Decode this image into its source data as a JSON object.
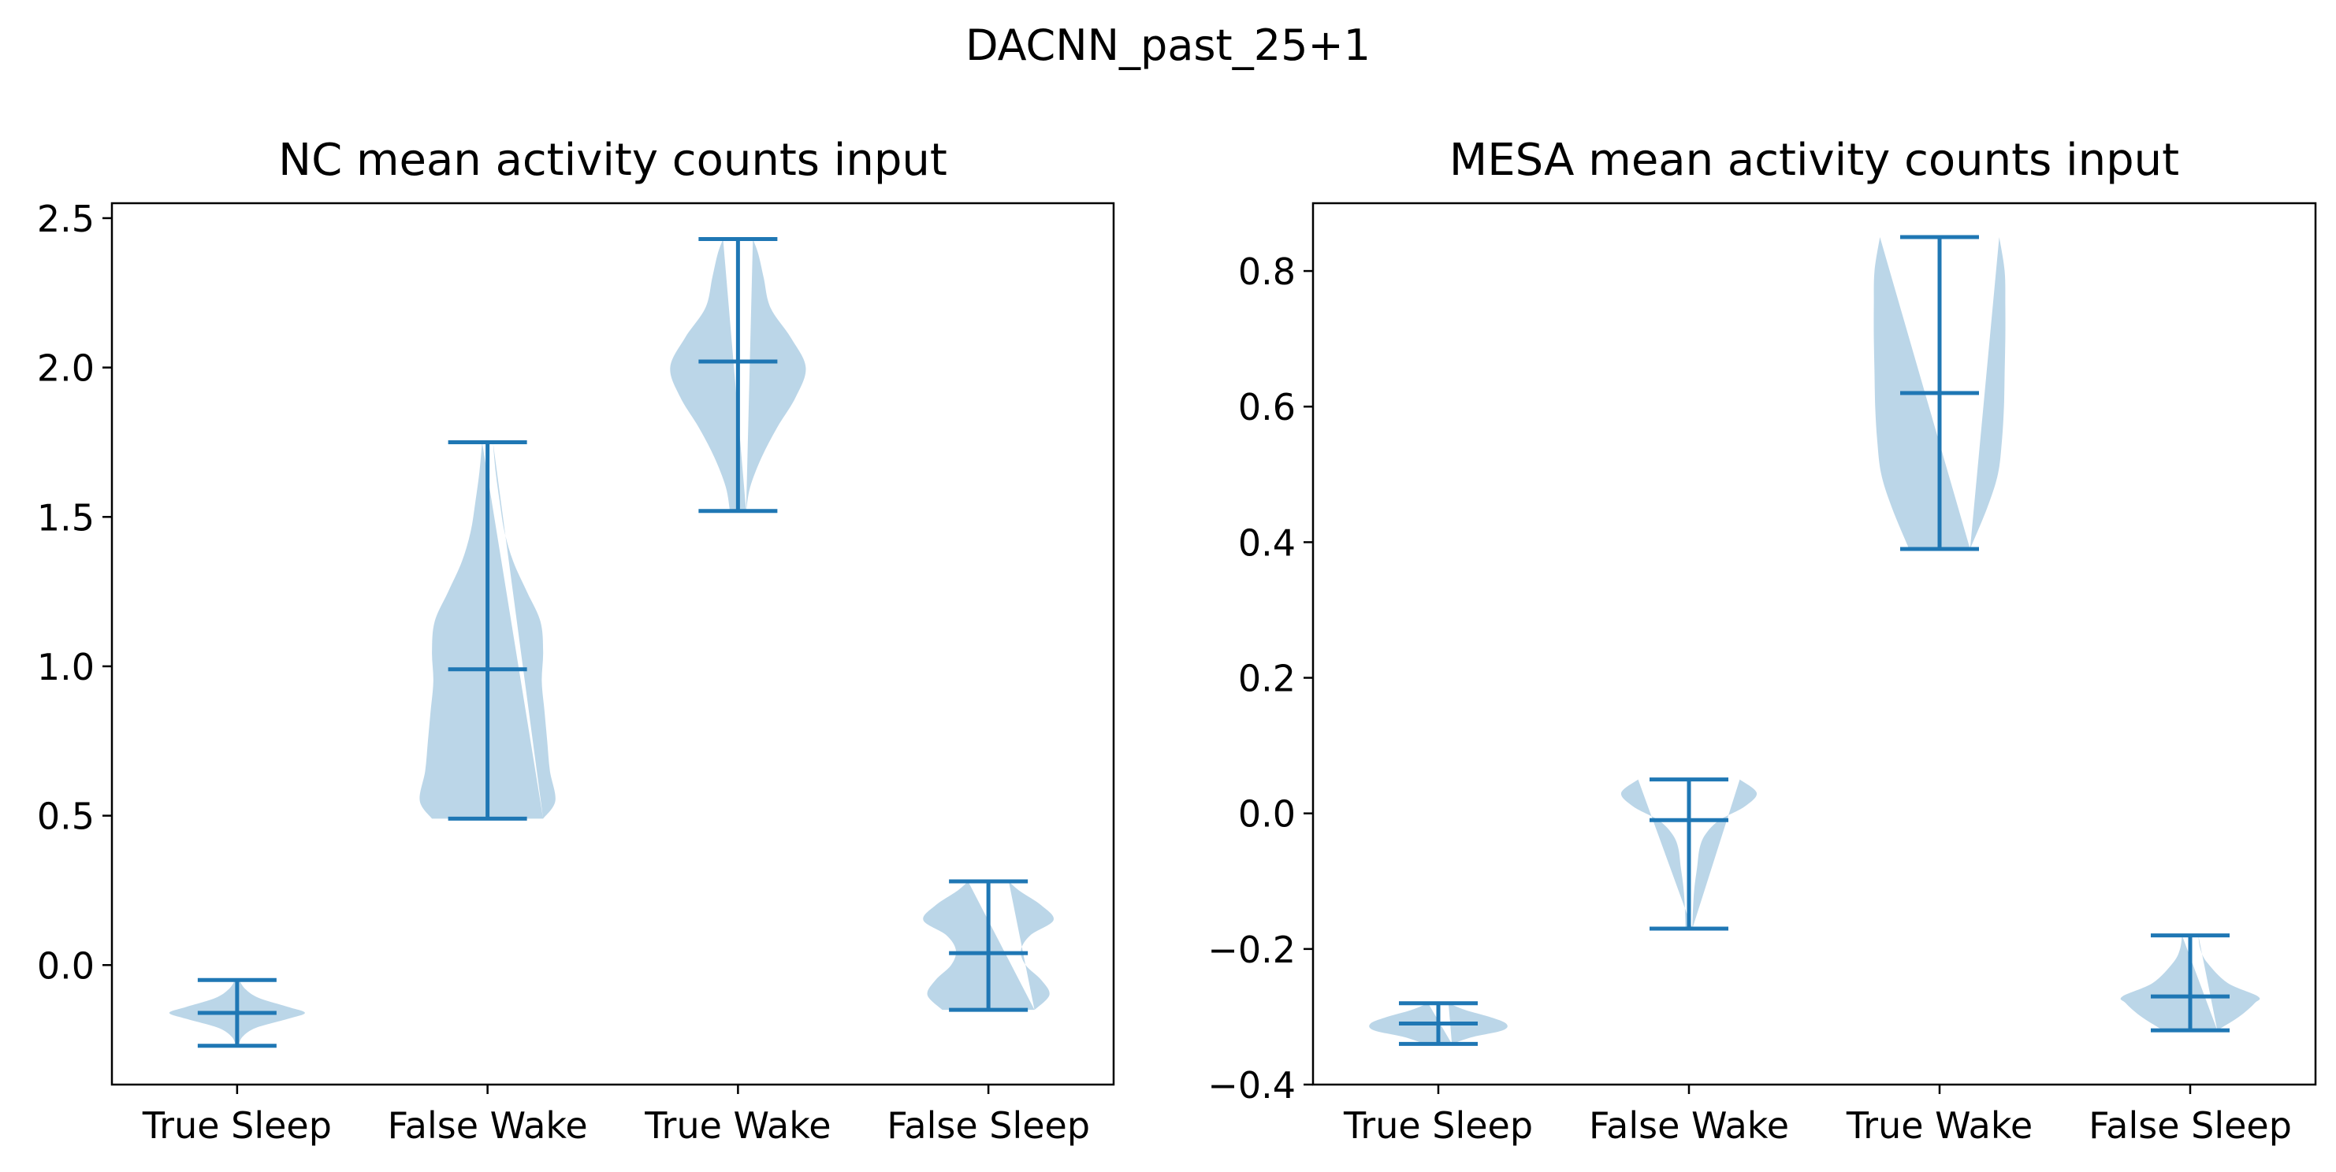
{
  "figure_title": "DACNN_past_25+1",
  "colors": {
    "body": "#1f77b4",
    "line": "#1f77b4"
  },
  "chart_data": [
    {
      "type": "violin",
      "title": "NC mean activity counts input",
      "categories": [
        "True Sleep",
        "False Wake",
        "True Wake",
        "False Sleep"
      ],
      "ylim": [
        -0.4,
        2.55
      ],
      "yticks": [
        0.0,
        0.5,
        1.0,
        1.5,
        2.0,
        2.5
      ],
      "ytick_labels": [
        "0.0",
        "0.5",
        "1.0",
        "1.5",
        "2.0",
        "2.5"
      ],
      "violins": [
        {
          "min": -0.27,
          "max": -0.05,
          "median": -0.16,
          "profile": [
            [
              -0.27,
              0.02
            ],
            [
              -0.24,
              0.08
            ],
            [
              -0.21,
              0.28
            ],
            [
              -0.18,
              0.75
            ],
            [
              -0.16,
              1.0
            ],
            [
              -0.14,
              0.75
            ],
            [
              -0.11,
              0.32
            ],
            [
              -0.08,
              0.12
            ],
            [
              -0.05,
              0.03
            ]
          ]
        },
        {
          "min": 0.49,
          "max": 1.75,
          "median": 0.99,
          "profile": [
            [
              0.49,
              0.82
            ],
            [
              0.55,
              1.0
            ],
            [
              0.65,
              0.92
            ],
            [
              0.75,
              0.88
            ],
            [
              0.85,
              0.84
            ],
            [
              0.95,
              0.8
            ],
            [
              1.05,
              0.82
            ],
            [
              1.15,
              0.78
            ],
            [
              1.25,
              0.58
            ],
            [
              1.35,
              0.38
            ],
            [
              1.45,
              0.25
            ],
            [
              1.55,
              0.18
            ],
            [
              1.65,
              0.12
            ],
            [
              1.75,
              0.08
            ]
          ]
        },
        {
          "min": 1.52,
          "max": 2.43,
          "median": 2.02,
          "profile": [
            [
              1.52,
              0.12
            ],
            [
              1.6,
              0.18
            ],
            [
              1.7,
              0.35
            ],
            [
              1.8,
              0.58
            ],
            [
              1.9,
              0.85
            ],
            [
              2.0,
              1.0
            ],
            [
              2.1,
              0.78
            ],
            [
              2.2,
              0.48
            ],
            [
              2.3,
              0.38
            ],
            [
              2.38,
              0.3
            ],
            [
              2.43,
              0.22
            ]
          ]
        },
        {
          "min": -0.15,
          "max": 0.28,
          "median": 0.04,
          "profile": [
            [
              -0.15,
              0.68
            ],
            [
              -0.1,
              0.9
            ],
            [
              -0.05,
              0.78
            ],
            [
              0.0,
              0.55
            ],
            [
              0.05,
              0.48
            ],
            [
              0.1,
              0.62
            ],
            [
              0.15,
              0.96
            ],
            [
              0.2,
              0.78
            ],
            [
              0.25,
              0.45
            ],
            [
              0.28,
              0.3
            ]
          ]
        }
      ]
    },
    {
      "type": "violin",
      "title": "MESA mean activity counts input",
      "categories": [
        "True Sleep",
        "False Wake",
        "True Wake",
        "False Sleep"
      ],
      "ylim": [
        -0.4,
        0.9
      ],
      "yticks": [
        -0.4,
        -0.2,
        0.0,
        0.2,
        0.4,
        0.6,
        0.8
      ],
      "ytick_labels": [
        "−0.4",
        "−0.2",
        "0.0",
        "0.2",
        "0.4",
        "0.6",
        "0.8"
      ],
      "violins": [
        {
          "min": -0.34,
          "max": -0.28,
          "median": -0.31,
          "profile": [
            [
              -0.34,
              0.2
            ],
            [
              -0.33,
              0.5
            ],
            [
              -0.32,
              0.95
            ],
            [
              -0.31,
              1.0
            ],
            [
              -0.3,
              0.75
            ],
            [
              -0.29,
              0.4
            ],
            [
              -0.28,
              0.15
            ]
          ]
        },
        {
          "min": -0.17,
          "max": 0.05,
          "median": -0.01,
          "profile": [
            [
              -0.17,
              0.05
            ],
            [
              -0.14,
              0.06
            ],
            [
              -0.11,
              0.08
            ],
            [
              -0.08,
              0.12
            ],
            [
              -0.05,
              0.16
            ],
            [
              -0.03,
              0.25
            ],
            [
              -0.01,
              0.45
            ],
            [
              0.01,
              0.82
            ],
            [
              0.03,
              1.0
            ],
            [
              0.05,
              0.75
            ]
          ]
        },
        {
          "min": 0.39,
          "max": 0.85,
          "median": 0.62,
          "profile": [
            [
              0.39,
              0.45
            ],
            [
              0.45,
              0.7
            ],
            [
              0.5,
              0.86
            ],
            [
              0.55,
              0.92
            ],
            [
              0.6,
              0.95
            ],
            [
              0.65,
              0.96
            ],
            [
              0.7,
              0.97
            ],
            [
              0.75,
              0.97
            ],
            [
              0.8,
              0.96
            ],
            [
              0.85,
              0.88
            ]
          ]
        },
        {
          "min": -0.32,
          "max": -0.18,
          "median": -0.27,
          "profile": [
            [
              -0.32,
              0.4
            ],
            [
              -0.3,
              0.72
            ],
            [
              -0.28,
              0.95
            ],
            [
              -0.27,
              1.0
            ],
            [
              -0.25,
              0.55
            ],
            [
              -0.22,
              0.25
            ],
            [
              -0.2,
              0.15
            ],
            [
              -0.18,
              0.12
            ]
          ]
        }
      ]
    }
  ]
}
